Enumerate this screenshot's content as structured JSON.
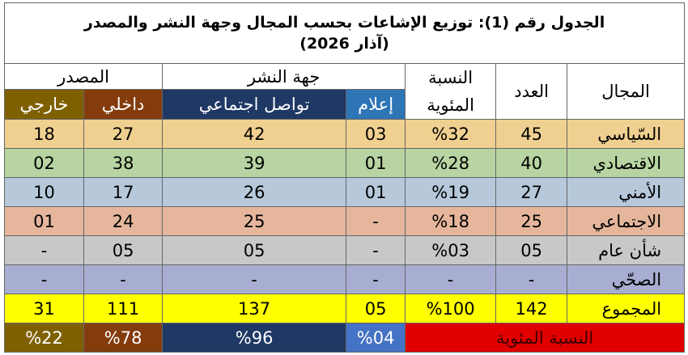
{
  "title": {
    "line1": "الجدول رقم (1): توزيع الإشاعات بحسب المجال وجهة النشر والمصدر",
    "line2": "(آذار 2026)"
  },
  "header": {
    "field": "المجال",
    "count": "العدد",
    "percent": "النسبة المئوية",
    "publisher": "جهة النشر",
    "source": "المصدر",
    "media": "إعلام",
    "social": "تواصل اجتماعي",
    "internal": "داخلي",
    "external": "خارجي"
  },
  "table": {
    "rows": [
      [
        "السّياسي",
        "45",
        "%32",
        "03",
        "42",
        "27",
        "18"
      ],
      [
        "الاقتصادي",
        "40",
        "%28",
        "01",
        "39",
        "38",
        "02"
      ],
      [
        "الأمني",
        "27",
        "%19",
        "01",
        "26",
        "17",
        "10"
      ],
      [
        "الاجتماعي",
        "25",
        "%18",
        "-",
        "25",
        "24",
        "01"
      ],
      [
        "شأن عام",
        "05",
        "%03",
        "-",
        "05",
        "05",
        "-"
      ],
      [
        "الصحّي",
        "-",
        "-",
        "-",
        "-",
        "-",
        "-"
      ],
      [
        "المجموع",
        "142",
        "%100",
        "05",
        "137",
        "111",
        "31"
      ]
    ]
  },
  "footer": {
    "label": "النسبة المئوية",
    "cells": [
      "%04",
      "%96",
      "%78",
      "%22"
    ]
  }
}
